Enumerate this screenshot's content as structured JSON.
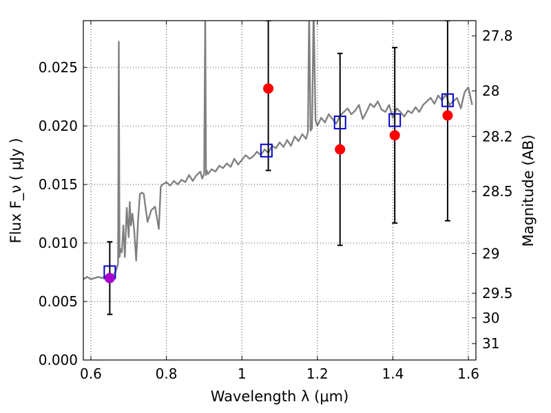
{
  "chart_data": {
    "type": "scatter",
    "xlabel": "Wavelength  λ (μm)",
    "ylabel": "Flux  F_ν ( μJy )",
    "ylabel_right": "Magnitude (AB)",
    "xlim": [
      0.58,
      1.62
    ],
    "ylim": [
      0.0,
      0.029
    ],
    "x_ticks": [
      {
        "value": 0.6,
        "label": "0.6"
      },
      {
        "value": 0.8,
        "label": "0.8"
      },
      {
        "value": 1.0,
        "label": "1"
      },
      {
        "value": 1.2,
        "label": "1.2"
      },
      {
        "value": 1.4,
        "label": "1.4"
      },
      {
        "value": 1.6,
        "label": "1.6"
      }
    ],
    "y_ticks": [
      {
        "value": 0.0,
        "label": "0.000"
      },
      {
        "value": 0.005,
        "label": "0.005"
      },
      {
        "value": 0.01,
        "label": "0.010"
      },
      {
        "value": 0.015,
        "label": "0.015"
      },
      {
        "value": 0.02,
        "label": "0.020"
      },
      {
        "value": 0.025,
        "label": "0.025"
      }
    ],
    "right_ticks": [
      {
        "flux": 0.0277,
        "label": "27.8"
      },
      {
        "flux": 0.023,
        "label": "28"
      },
      {
        "flux": 0.0191,
        "label": "28.2"
      },
      {
        "flux": 0.0144,
        "label": "28.5"
      },
      {
        "flux": 0.0091,
        "label": "29"
      },
      {
        "flux": 0.0057,
        "label": "29.5"
      },
      {
        "flux": 0.0036,
        "label": "30"
      },
      {
        "flux": 0.0014,
        "label": "31"
      }
    ],
    "grid": true,
    "series": [
      {
        "kind": "line",
        "color": "#808080",
        "x": [
          0.58,
          0.59,
          0.6,
          0.61,
          0.62,
          0.63,
          0.64,
          0.65,
          0.66,
          0.665,
          0.668,
          0.672,
          0.674,
          0.676,
          0.678,
          0.682,
          0.686,
          0.69,
          0.695,
          0.7,
          0.703,
          0.706,
          0.71,
          0.715,
          0.72,
          0.725,
          0.73,
          0.735,
          0.74,
          0.745,
          0.75,
          0.76,
          0.77,
          0.78,
          0.785,
          0.79,
          0.8,
          0.81,
          0.82,
          0.83,
          0.84,
          0.85,
          0.86,
          0.87,
          0.88,
          0.89,
          0.895,
          0.9,
          0.903,
          0.905,
          0.907,
          0.91,
          0.92,
          0.93,
          0.94,
          0.95,
          0.96,
          0.97,
          0.98,
          0.99,
          1.0,
          1.01,
          1.02,
          1.03,
          1.04,
          1.05,
          1.06,
          1.07,
          1.08,
          1.09,
          1.1,
          1.11,
          1.12,
          1.13,
          1.14,
          1.15,
          1.16,
          1.17,
          1.175,
          1.178,
          1.182,
          1.186,
          1.19,
          1.195,
          1.2,
          1.21,
          1.22,
          1.23,
          1.24,
          1.25,
          1.26,
          1.27,
          1.28,
          1.29,
          1.3,
          1.31,
          1.32,
          1.33,
          1.34,
          1.35,
          1.36,
          1.37,
          1.38,
          1.39,
          1.4,
          1.41,
          1.42,
          1.43,
          1.44,
          1.45,
          1.46,
          1.47,
          1.48,
          1.49,
          1.5,
          1.51,
          1.52,
          1.53,
          1.54,
          1.55,
          1.56,
          1.57,
          1.58,
          1.59,
          1.6,
          1.61
        ],
        "y": [
          0.0069,
          0.0071,
          0.0069,
          0.007,
          0.0071,
          0.007,
          0.0072,
          0.0071,
          0.0073,
          0.0075,
          0.0078,
          0.0082,
          0.0272,
          0.0088,
          0.0095,
          0.0092,
          0.0115,
          0.0088,
          0.013,
          0.0105,
          0.0135,
          0.0115,
          0.0125,
          0.011,
          0.0085,
          0.012,
          0.0142,
          0.0143,
          0.0142,
          0.013,
          0.0118,
          0.0128,
          0.0131,
          0.0112,
          0.0148,
          0.015,
          0.0152,
          0.0149,
          0.0153,
          0.015,
          0.0154,
          0.0152,
          0.0158,
          0.0153,
          0.0158,
          0.0161,
          0.0155,
          0.0159,
          0.03,
          0.0158,
          0.0162,
          0.0159,
          0.0163,
          0.0161,
          0.0166,
          0.0164,
          0.0168,
          0.0165,
          0.0172,
          0.0167,
          0.0171,
          0.0175,
          0.0172,
          0.0174,
          0.0178,
          0.0175,
          0.018,
          0.0177,
          0.0183,
          0.0181,
          0.0186,
          0.0182,
          0.0188,
          0.0183,
          0.0191,
          0.0187,
          0.0193,
          0.0189,
          0.0195,
          0.03,
          0.0196,
          0.0198,
          0.03,
          0.0205,
          0.02,
          0.0207,
          0.0203,
          0.021,
          0.0206,
          0.0202,
          0.0209,
          0.0212,
          0.0215,
          0.021,
          0.0213,
          0.0218,
          0.0206,
          0.0212,
          0.0219,
          0.0216,
          0.0221,
          0.0214,
          0.0212,
          0.0218,
          0.0207,
          0.0215,
          0.0212,
          0.0208,
          0.0213,
          0.0211,
          0.0216,
          0.0212,
          0.0218,
          0.0221,
          0.0224,
          0.0219,
          0.0226,
          0.0222,
          0.0227,
          0.0218,
          0.0221,
          0.0224,
          0.0215,
          0.0229,
          0.0233,
          0.0218
        ]
      },
      {
        "kind": "model-photometry",
        "color": "#0000cc",
        "marker": "open-square",
        "x": [
          0.65,
          1.065,
          1.26,
          1.405,
          1.545
        ],
        "y": [
          0.0075,
          0.0179,
          0.0203,
          0.0205,
          0.0222
        ]
      },
      {
        "kind": "observed",
        "color": "#ff0000",
        "marker": "filled-circle",
        "x": [
          1.07,
          1.26,
          1.405,
          1.545
        ],
        "y": [
          0.0232,
          0.018,
          0.0192,
          0.0209
        ],
        "yerr_low": [
          0.0162,
          0.0098,
          0.0117,
          0.0119
        ],
        "yerr_high": [
          0.029,
          0.0262,
          0.0267,
          0.029
        ]
      },
      {
        "kind": "observed",
        "color": "#aa00cc",
        "marker": "filled-circle",
        "x": [
          0.65
        ],
        "y": [
          0.007
        ],
        "yerr_low": [
          0.0039
        ],
        "yerr_high": [
          0.0101
        ]
      }
    ]
  }
}
